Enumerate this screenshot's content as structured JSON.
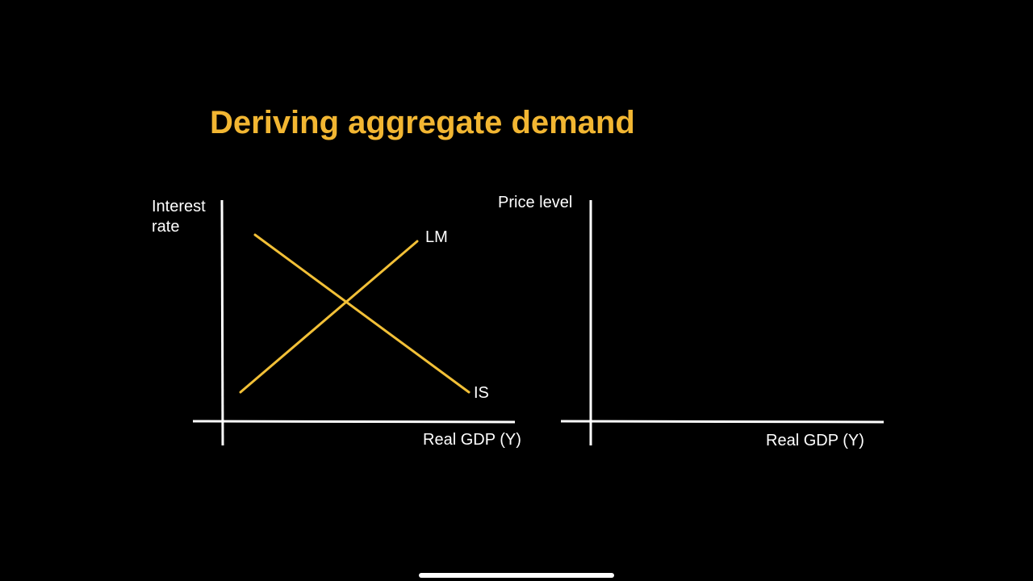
{
  "slide": {
    "title": "Deriving aggregate demand"
  },
  "colors": {
    "background": "#000000",
    "title": "#F2B632",
    "axis": "#FFFFFF",
    "curve": "#F2C037",
    "text": "#FFFFFF"
  },
  "is_lm_diagram": {
    "y_axis_label_line1": "Interest",
    "y_axis_label_line2": "rate",
    "x_axis_label": "Real GDP (Y)",
    "curves": [
      {
        "id": "lm",
        "label": "LM",
        "slope": "upward"
      },
      {
        "id": "is",
        "label": "IS",
        "slope": "downward"
      }
    ]
  },
  "ad_diagram": {
    "y_axis_label": "Price level",
    "x_axis_label": "Real GDP (Y)"
  }
}
